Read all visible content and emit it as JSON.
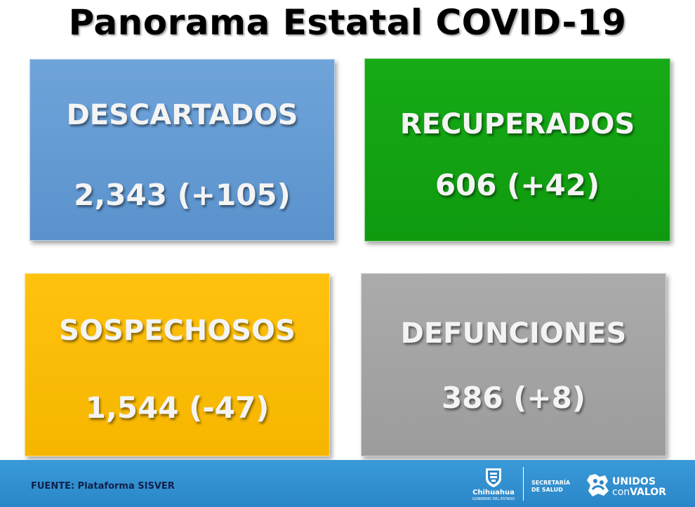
{
  "header": {
    "title": "Panorama Estatal COVID-19"
  },
  "cards": [
    {
      "label": "DESCARTADOS",
      "value": "2,343 (+105)",
      "color": "#6fa4da"
    },
    {
      "label": "RECUPERADOS",
      "value": "606 (+42)",
      "color": "#16ab16"
    },
    {
      "label": "SOSPECHOSOS",
      "value": "1,544 (-47)",
      "color": "#ffc20e"
    },
    {
      "label": "DEFUNCIONES",
      "value": "386 (+8)",
      "color": "#ababab"
    }
  ],
  "footer": {
    "source": "FUENTE: Plataforma SISVER",
    "background_color": "#2a86c8",
    "chihuahua_name": "Chihuahua",
    "chihuahua_sub": "GOBIERNO DEL ESTADO",
    "secretaria_line1": "SECRETARÍA",
    "secretaria_line2": "DE SALUD",
    "unidos_line1": "UNIDOS",
    "unidos_con": "con",
    "unidos_valor": "VALOR",
    "icons": [
      "chihuahua-shield-icon",
      "unidos-con-valor-logo-icon"
    ]
  }
}
